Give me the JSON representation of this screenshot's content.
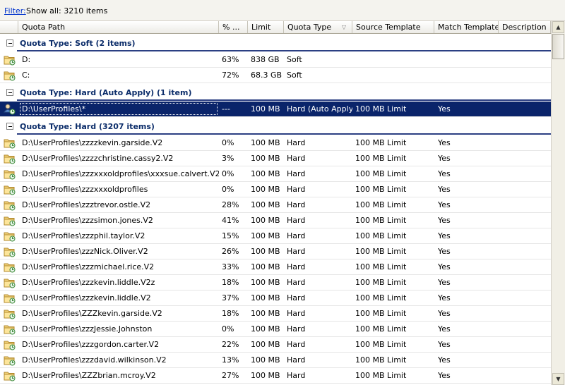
{
  "filter": {
    "link_label": "Filter:",
    "text": "Show all: 3210 items"
  },
  "columns": [
    "Quota Path",
    "% ...",
    "Limit",
    "Quota Type",
    "Source Template",
    "Match Template",
    "Description"
  ],
  "colors": {
    "selection": "#0a246a",
    "group_title": "#0c2d6a",
    "group_rule": "#2b3f83",
    "link": "#0033cc"
  },
  "groups": [
    {
      "title": "Quota Type: Soft (2 items)",
      "rows": [
        {
          "icon": "folder-quota-icon",
          "path": "D:",
          "pct": "63%",
          "limit": "838 GB",
          "type": "Soft",
          "source": "",
          "match": "",
          "desc": ""
        },
        {
          "icon": "folder-quota-icon",
          "path": "C:",
          "pct": "72%",
          "limit": "68.3 GB",
          "type": "Soft",
          "source": "",
          "match": "",
          "desc": ""
        }
      ]
    },
    {
      "title": "Quota Type: Hard (Auto Apply) (1 item)",
      "rows": [
        {
          "icon": "auto-apply-quota-icon",
          "path": "D:\\UserProfiles\\*",
          "pct": "---",
          "limit": "100 MB",
          "type": "Hard (Auto Apply)",
          "source": "100 MB Limit",
          "match": "Yes",
          "desc": "",
          "selected": true
        }
      ]
    },
    {
      "title": "Quota Type: Hard (3207 items)",
      "rows": [
        {
          "icon": "folder-quota-icon",
          "path": "D:\\UserProfiles\\zzzzkevin.garside.V2",
          "pct": "0%",
          "limit": "100 MB",
          "type": "Hard",
          "source": "100 MB Limit",
          "match": "Yes",
          "desc": ""
        },
        {
          "icon": "folder-quota-icon",
          "path": "D:\\UserProfiles\\zzzzchristine.cassy2.V2",
          "pct": "3%",
          "limit": "100 MB",
          "type": "Hard",
          "source": "100 MB Limit",
          "match": "Yes",
          "desc": ""
        },
        {
          "icon": "folder-quota-icon",
          "path": "D:\\UserProfiles\\zzzxxxoldprofiles\\xxxsue.calvert.V2",
          "pct": "0%",
          "limit": "100 MB",
          "type": "Hard",
          "source": "100 MB Limit",
          "match": "Yes",
          "desc": ""
        },
        {
          "icon": "folder-quota-icon",
          "path": "D:\\UserProfiles\\zzzxxxoldprofiles",
          "pct": "0%",
          "limit": "100 MB",
          "type": "Hard",
          "source": "100 MB Limit",
          "match": "Yes",
          "desc": ""
        },
        {
          "icon": "folder-quota-icon",
          "path": "D:\\UserProfiles\\zzztrevor.ostle.V2",
          "pct": "28%",
          "limit": "100 MB",
          "type": "Hard",
          "source": "100 MB Limit",
          "match": "Yes",
          "desc": ""
        },
        {
          "icon": "folder-quota-icon",
          "path": "D:\\UserProfiles\\zzzsimon.jones.V2",
          "pct": "41%",
          "limit": "100 MB",
          "type": "Hard",
          "source": "100 MB Limit",
          "match": "Yes",
          "desc": ""
        },
        {
          "icon": "folder-quota-icon",
          "path": "D:\\UserProfiles\\zzzphil.taylor.V2",
          "pct": "15%",
          "limit": "100 MB",
          "type": "Hard",
          "source": "100 MB Limit",
          "match": "Yes",
          "desc": ""
        },
        {
          "icon": "folder-quota-icon",
          "path": "D:\\UserProfiles\\zzzNick.Oliver.V2",
          "pct": "26%",
          "limit": "100 MB",
          "type": "Hard",
          "source": "100 MB Limit",
          "match": "Yes",
          "desc": ""
        },
        {
          "icon": "folder-quota-icon",
          "path": "D:\\UserProfiles\\zzzmichael.rice.V2",
          "pct": "33%",
          "limit": "100 MB",
          "type": "Hard",
          "source": "100 MB Limit",
          "match": "Yes",
          "desc": ""
        },
        {
          "icon": "folder-quota-icon",
          "path": "D:\\UserProfiles\\zzzkevin.liddle.V2z",
          "pct": "18%",
          "limit": "100 MB",
          "type": "Hard",
          "source": "100 MB Limit",
          "match": "Yes",
          "desc": ""
        },
        {
          "icon": "folder-quota-icon",
          "path": "D:\\UserProfiles\\zzzkevin.liddle.V2",
          "pct": "37%",
          "limit": "100 MB",
          "type": "Hard",
          "source": "100 MB Limit",
          "match": "Yes",
          "desc": ""
        },
        {
          "icon": "folder-quota-icon",
          "path": "D:\\UserProfiles\\ZZZkevin.garside.V2",
          "pct": "18%",
          "limit": "100 MB",
          "type": "Hard",
          "source": "100 MB Limit",
          "match": "Yes",
          "desc": ""
        },
        {
          "icon": "folder-quota-icon",
          "path": "D:\\UserProfiles\\zzzJessie.Johnston",
          "pct": "0%",
          "limit": "100 MB",
          "type": "Hard",
          "source": "100 MB Limit",
          "match": "Yes",
          "desc": ""
        },
        {
          "icon": "folder-quota-icon",
          "path": "D:\\UserProfiles\\zzzgordon.carter.V2",
          "pct": "22%",
          "limit": "100 MB",
          "type": "Hard",
          "source": "100 MB Limit",
          "match": "Yes",
          "desc": ""
        },
        {
          "icon": "folder-quota-icon",
          "path": "D:\\UserProfiles\\zzzdavid.wilkinson.V2",
          "pct": "13%",
          "limit": "100 MB",
          "type": "Hard",
          "source": "100 MB Limit",
          "match": "Yes",
          "desc": ""
        },
        {
          "icon": "folder-quota-icon",
          "path": "D:\\UserProfiles\\ZZZbrian.mcroy.V2",
          "pct": "27%",
          "limit": "100 MB",
          "type": "Hard",
          "source": "100 MB Limit",
          "match": "Yes",
          "desc": ""
        }
      ]
    }
  ]
}
